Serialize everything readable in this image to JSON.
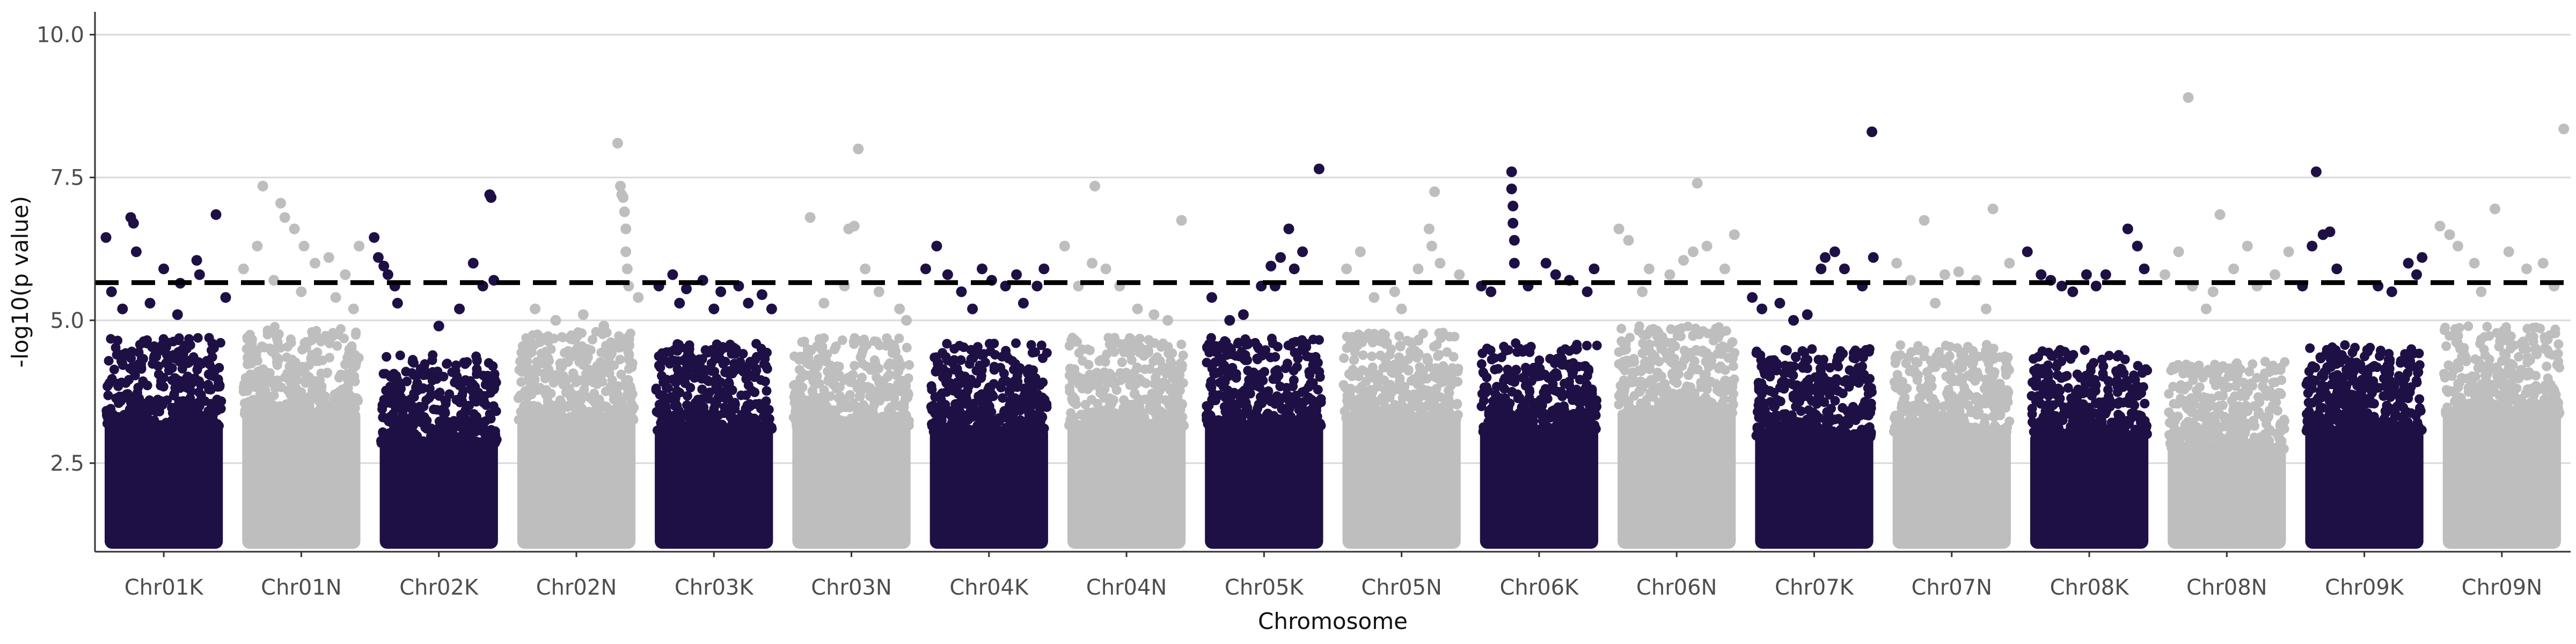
{
  "chart_data": {
    "type": "scatter",
    "subtype": "manhattan",
    "title": "",
    "xlabel": "Chromosome",
    "ylabel": "-log10(p value)",
    "ylim": [
      0.95,
      10.4
    ],
    "yticks": [
      2.5,
      5.0,
      7.5,
      10.0
    ],
    "ytick_labels": [
      "2.5",
      "5.0",
      "7.5",
      "10.0"
    ],
    "grid": "horizontal major",
    "legend": "none",
    "threshold": {
      "value": 5.66,
      "style": "dashed",
      "color": "#000000"
    },
    "colors": {
      "dark": "#1e1045",
      "light": "#bebebe"
    },
    "categories": [
      "Chr01K",
      "Chr01N",
      "Chr02K",
      "Chr02N",
      "Chr03K",
      "Chr03N",
      "Chr04K",
      "Chr04N",
      "Chr05K",
      "Chr05N",
      "Chr06K",
      "Chr06N",
      "Chr07K",
      "Chr07N",
      "Chr08K",
      "Chr08N",
      "Chr09K",
      "Chr09N"
    ],
    "category_colors": [
      "dark",
      "light",
      "dark",
      "light",
      "dark",
      "light",
      "dark",
      "light",
      "dark",
      "light",
      "dark",
      "light",
      "dark",
      "light",
      "dark",
      "light",
      "dark",
      "light"
    ],
    "bulk_top": [
      3.7,
      3.9,
      3.4,
      3.8,
      3.6,
      3.7,
      3.6,
      3.7,
      3.7,
      3.8,
      3.6,
      3.9,
      3.5,
      3.6,
      3.5,
      3.3,
      3.6,
      3.9
    ],
    "peak_values": [
      6.8,
      7.4,
      7.2,
      8.1,
      5.8,
      8.0,
      6.3,
      7.4,
      7.6,
      7.3,
      7.6,
      7.4,
      8.3,
      7.0,
      6.6,
      8.9,
      7.6,
      8.4
    ],
    "points": [
      [
        0,
        0.08,
        6.45
      ],
      [
        0,
        0.26,
        6.8
      ],
      [
        0,
        0.28,
        6.7
      ],
      [
        0,
        0.3,
        6.2
      ],
      [
        0,
        0.12,
        5.5
      ],
      [
        0,
        0.5,
        5.9
      ],
      [
        0,
        0.62,
        5.65
      ],
      [
        0,
        0.74,
        6.05
      ],
      [
        0,
        0.76,
        5.8
      ],
      [
        0,
        0.88,
        6.85
      ],
      [
        0,
        0.2,
        5.2
      ],
      [
        0,
        0.4,
        5.3
      ],
      [
        0,
        0.6,
        5.1
      ],
      [
        0,
        0.95,
        5.4
      ],
      [
        1,
        0.08,
        5.9
      ],
      [
        1,
        0.18,
        6.3
      ],
      [
        1,
        0.22,
        7.35
      ],
      [
        1,
        0.35,
        7.05
      ],
      [
        1,
        0.38,
        6.8
      ],
      [
        1,
        0.45,
        6.6
      ],
      [
        1,
        0.52,
        6.3
      ],
      [
        1,
        0.6,
        6.0
      ],
      [
        1,
        0.7,
        6.1
      ],
      [
        1,
        0.82,
        5.8
      ],
      [
        1,
        0.92,
        6.3
      ],
      [
        1,
        0.3,
        5.7
      ],
      [
        1,
        0.5,
        5.5
      ],
      [
        1,
        0.75,
        5.4
      ],
      [
        1,
        0.88,
        5.2
      ],
      [
        2,
        0.03,
        6.45
      ],
      [
        2,
        0.06,
        6.1
      ],
      [
        2,
        0.1,
        5.95
      ],
      [
        2,
        0.13,
        5.8
      ],
      [
        2,
        0.18,
        5.6
      ],
      [
        2,
        0.75,
        6.0
      ],
      [
        2,
        0.82,
        5.6
      ],
      [
        2,
        0.87,
        7.2
      ],
      [
        2,
        0.88,
        7.15
      ],
      [
        2,
        0.9,
        5.7
      ],
      [
        2,
        0.2,
        5.3
      ],
      [
        2,
        0.5,
        4.9
      ],
      [
        2,
        0.65,
        5.2
      ],
      [
        3,
        0.2,
        5.2
      ],
      [
        3,
        0.35,
        5.0
      ],
      [
        3,
        0.55,
        5.1
      ],
      [
        3,
        0.8,
        8.1
      ],
      [
        3,
        0.82,
        7.35
      ],
      [
        3,
        0.83,
        7.2
      ],
      [
        3,
        0.84,
        7.15
      ],
      [
        3,
        0.85,
        6.9
      ],
      [
        3,
        0.86,
        6.6
      ],
      [
        3,
        0.86,
        6.2
      ],
      [
        3,
        0.87,
        5.9
      ],
      [
        3,
        0.88,
        5.6
      ],
      [
        3,
        0.95,
        5.4
      ],
      [
        3,
        0.7,
        4.9
      ],
      [
        4,
        0.1,
        5.6
      ],
      [
        4,
        0.2,
        5.8
      ],
      [
        4,
        0.3,
        5.55
      ],
      [
        4,
        0.42,
        5.7
      ],
      [
        4,
        0.55,
        5.5
      ],
      [
        4,
        0.68,
        5.6
      ],
      [
        4,
        0.75,
        5.3
      ],
      [
        4,
        0.85,
        5.45
      ],
      [
        4,
        0.92,
        5.2
      ],
      [
        4,
        0.25,
        5.3
      ],
      [
        4,
        0.5,
        5.2
      ],
      [
        5,
        0.2,
        6.8
      ],
      [
        5,
        0.45,
        5.6
      ],
      [
        5,
        0.48,
        6.6
      ],
      [
        5,
        0.52,
        6.65
      ],
      [
        5,
        0.55,
        8.0
      ],
      [
        5,
        0.6,
        5.9
      ],
      [
        5,
        0.7,
        5.5
      ],
      [
        5,
        0.85,
        5.2
      ],
      [
        5,
        0.3,
        5.3
      ],
      [
        5,
        0.9,
        5.0
      ],
      [
        6,
        0.04,
        5.9
      ],
      [
        6,
        0.12,
        6.3
      ],
      [
        6,
        0.2,
        5.8
      ],
      [
        6,
        0.3,
        5.5
      ],
      [
        6,
        0.45,
        5.9
      ],
      [
        6,
        0.52,
        5.7
      ],
      [
        6,
        0.62,
        5.6
      ],
      [
        6,
        0.7,
        5.8
      ],
      [
        6,
        0.85,
        5.6
      ],
      [
        6,
        0.9,
        5.9
      ],
      [
        6,
        0.38,
        5.2
      ],
      [
        6,
        0.75,
        5.3
      ],
      [
        7,
        0.05,
        6.3
      ],
      [
        7,
        0.15,
        5.6
      ],
      [
        7,
        0.25,
        6.0
      ],
      [
        7,
        0.27,
        7.35
      ],
      [
        7,
        0.35,
        5.9
      ],
      [
        7,
        0.45,
        5.6
      ],
      [
        7,
        0.58,
        5.2
      ],
      [
        7,
        0.9,
        6.75
      ],
      [
        7,
        0.7,
        5.1
      ],
      [
        7,
        0.8,
        5.0
      ],
      [
        8,
        0.12,
        5.4
      ],
      [
        8,
        0.35,
        5.1
      ],
      [
        8,
        0.48,
        5.6
      ],
      [
        8,
        0.55,
        5.95
      ],
      [
        8,
        0.58,
        5.6
      ],
      [
        8,
        0.62,
        6.1
      ],
      [
        8,
        0.68,
        6.6
      ],
      [
        8,
        0.78,
        6.2
      ],
      [
        8,
        0.9,
        7.65
      ],
      [
        8,
        0.72,
        5.9
      ],
      [
        8,
        0.25,
        5.0
      ],
      [
        9,
        0.1,
        5.9
      ],
      [
        9,
        0.2,
        6.2
      ],
      [
        9,
        0.3,
        5.4
      ],
      [
        9,
        0.45,
        5.5
      ],
      [
        9,
        0.5,
        5.2
      ],
      [
        9,
        0.7,
        6.6
      ],
      [
        9,
        0.72,
        6.3
      ],
      [
        9,
        0.74,
        7.25
      ],
      [
        9,
        0.78,
        6.0
      ],
      [
        9,
        0.92,
        5.8
      ],
      [
        9,
        0.62,
        5.9
      ],
      [
        10,
        0.08,
        5.6
      ],
      [
        10,
        0.15,
        5.5
      ],
      [
        10,
        0.3,
        7.6
      ],
      [
        10,
        0.3,
        7.3
      ],
      [
        10,
        0.31,
        7.0
      ],
      [
        10,
        0.31,
        6.7
      ],
      [
        10,
        0.32,
        6.4
      ],
      [
        10,
        0.32,
        6.0
      ],
      [
        10,
        0.42,
        5.6
      ],
      [
        10,
        0.55,
        6.0
      ],
      [
        10,
        0.62,
        5.8
      ],
      [
        10,
        0.72,
        5.7
      ],
      [
        10,
        0.85,
        5.5
      ],
      [
        10,
        0.9,
        5.9
      ],
      [
        11,
        0.08,
        6.6
      ],
      [
        11,
        0.15,
        6.4
      ],
      [
        11,
        0.3,
        5.9
      ],
      [
        11,
        0.45,
        5.8
      ],
      [
        11,
        0.55,
        6.05
      ],
      [
        11,
        0.62,
        6.2
      ],
      [
        11,
        0.65,
        7.4
      ],
      [
        11,
        0.72,
        6.3
      ],
      [
        11,
        0.85,
        5.9
      ],
      [
        11,
        0.92,
        6.5
      ],
      [
        11,
        0.25,
        5.5
      ],
      [
        12,
        0.05,
        5.4
      ],
      [
        12,
        0.12,
        5.2
      ],
      [
        12,
        0.25,
        5.3
      ],
      [
        12,
        0.45,
        5.1
      ],
      [
        12,
        0.55,
        5.9
      ],
      [
        12,
        0.58,
        6.1
      ],
      [
        12,
        0.65,
        6.2
      ],
      [
        12,
        0.72,
        5.9
      ],
      [
        12,
        0.85,
        5.6
      ],
      [
        12,
        0.92,
        8.3
      ],
      [
        12,
        0.93,
        6.1
      ],
      [
        12,
        0.35,
        5.0
      ],
      [
        13,
        0.1,
        6.0
      ],
      [
        13,
        0.2,
        5.7
      ],
      [
        13,
        0.3,
        6.75
      ],
      [
        13,
        0.45,
        5.8
      ],
      [
        13,
        0.55,
        5.85
      ],
      [
        13,
        0.68,
        5.7
      ],
      [
        13,
        0.8,
        6.95
      ],
      [
        13,
        0.92,
        6.0
      ],
      [
        13,
        0.38,
        5.3
      ],
      [
        13,
        0.75,
        5.2
      ],
      [
        14,
        0.05,
        6.2
      ],
      [
        14,
        0.15,
        5.8
      ],
      [
        14,
        0.22,
        5.7
      ],
      [
        14,
        0.3,
        5.6
      ],
      [
        14,
        0.38,
        5.5
      ],
      [
        14,
        0.48,
        5.8
      ],
      [
        14,
        0.55,
        5.6
      ],
      [
        14,
        0.62,
        5.8
      ],
      [
        14,
        0.78,
        6.6
      ],
      [
        14,
        0.85,
        6.3
      ],
      [
        14,
        0.9,
        5.9
      ],
      [
        15,
        0.05,
        5.8
      ],
      [
        15,
        0.15,
        6.2
      ],
      [
        15,
        0.22,
        8.9
      ],
      [
        15,
        0.25,
        5.6
      ],
      [
        15,
        0.4,
        5.5
      ],
      [
        15,
        0.55,
        5.9
      ],
      [
        15,
        0.65,
        6.3
      ],
      [
        15,
        0.72,
        5.6
      ],
      [
        15,
        0.85,
        5.8
      ],
      [
        15,
        0.95,
        6.2
      ],
      [
        15,
        0.45,
        6.85
      ],
      [
        15,
        0.35,
        5.2
      ],
      [
        16,
        0.05,
        5.6
      ],
      [
        16,
        0.12,
        6.3
      ],
      [
        16,
        0.15,
        7.6
      ],
      [
        16,
        0.2,
        6.5
      ],
      [
        16,
        0.25,
        6.55
      ],
      [
        16,
        0.3,
        5.9
      ],
      [
        16,
        0.6,
        5.6
      ],
      [
        16,
        0.7,
        5.5
      ],
      [
        16,
        0.82,
        6.0
      ],
      [
        16,
        0.88,
        5.8
      ],
      [
        16,
        0.92,
        6.1
      ],
      [
        17,
        0.05,
        6.65
      ],
      [
        17,
        0.12,
        6.5
      ],
      [
        17,
        0.18,
        6.3
      ],
      [
        17,
        0.3,
        6.0
      ],
      [
        17,
        0.45,
        6.95
      ],
      [
        17,
        0.55,
        6.2
      ],
      [
        17,
        0.68,
        5.9
      ],
      [
        17,
        0.8,
        6.0
      ],
      [
        17,
        0.95,
        8.35
      ],
      [
        17,
        0.35,
        5.5
      ],
      [
        17,
        0.88,
        5.6
      ]
    ]
  }
}
